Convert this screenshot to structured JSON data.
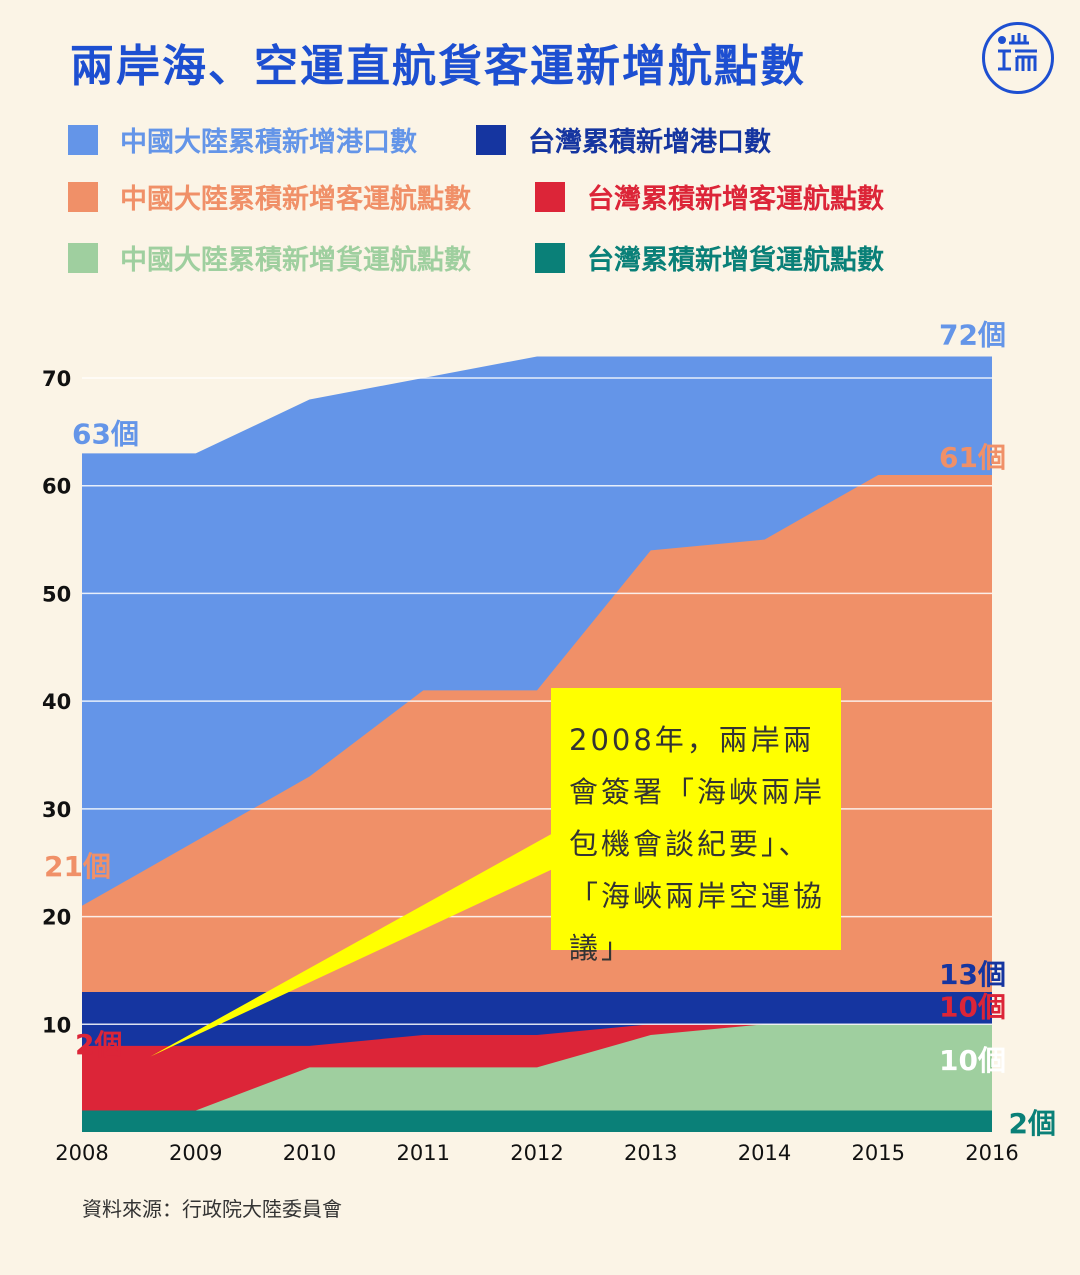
{
  "title": "兩岸海、空運直航貨客運新增航點數",
  "logo": {
    "text": "端",
    "icon": "initium-logo-icon",
    "color": "#1d4fd1"
  },
  "legend": [
    {
      "label": "中國大陸累積新增港口數",
      "color": "#6495e8",
      "text_color": "#6495e8"
    },
    {
      "label": "台灣累積新增港口數",
      "color": "#1535a0",
      "text_color": "#1535a0"
    },
    {
      "label": "中國大陸累積新增客運航點數",
      "color": "#f09068",
      "text_color": "#f09068"
    },
    {
      "label": "台灣累積新增客運航點數",
      "color": "#dc2538",
      "text_color": "#dc2538"
    },
    {
      "label": "中國大陸累積新增貨運航點數",
      "color": "#9fcf9f",
      "text_color": "#9fcf9f"
    },
    {
      "label": "台灣累積新增貨運航點數",
      "color": "#0a8078",
      "text_color": "#0a8078"
    }
  ],
  "chart_data": {
    "type": "area",
    "x": [
      2008,
      2009,
      2010,
      2011,
      2012,
      2013,
      2014,
      2015,
      2016
    ],
    "ylim": [
      0,
      70
    ],
    "yticks": [
      10,
      20,
      30,
      40,
      50,
      60,
      70
    ],
    "grid": true,
    "series": [
      {
        "name": "中國大陸累積新增港口數",
        "color": "#6495e8",
        "values": [
          63,
          63,
          68,
          70,
          72,
          72,
          72,
          72,
          72
        ]
      },
      {
        "name": "中國大陸累積新增客運航點數",
        "color": "#f09068",
        "values": [
          21,
          27,
          33,
          41,
          41,
          54,
          55,
          61,
          61
        ]
      },
      {
        "name": "台灣累積新增港口數",
        "color": "#1535a0",
        "values": [
          13,
          13,
          13,
          13,
          13,
          13,
          13,
          13,
          13
        ]
      },
      {
        "name": "台灣累積新增客運航點數",
        "color": "#dc2538",
        "values": [
          8,
          8,
          8,
          9,
          9,
          10,
          10,
          10,
          10
        ]
      },
      {
        "name": "中國大陸累積新增貨運航點數",
        "color": "#9fcf9f",
        "values": [
          2,
          2,
          6,
          6,
          6,
          9,
          10,
          10,
          10
        ]
      },
      {
        "name": "台灣累積新增貨運航點數",
        "color": "#0a8078",
        "values": [
          2,
          2,
          2,
          2,
          2,
          2,
          2,
          2,
          2
        ]
      }
    ],
    "annotations": [
      {
        "text": "72個",
        "x": 2016,
        "y": 72,
        "color": "#6495e8"
      },
      {
        "text": "63個",
        "x": 2008,
        "y": 63,
        "color": "#6495e8"
      },
      {
        "text": "61個",
        "x": 2016,
        "y": 61,
        "color": "#f09068"
      },
      {
        "text": "21個",
        "x": 2008,
        "y": 21,
        "color": "#f09068"
      },
      {
        "text": "13個",
        "x": 2016,
        "y": 13,
        "color": "#1535a0"
      },
      {
        "text": "10個",
        "x": 2016,
        "y": 10,
        "color": "#dc2538"
      },
      {
        "text": "2個",
        "x": 2008,
        "y": 8,
        "color": "#dc2538"
      },
      {
        "text": "10個",
        "x": 2016,
        "y": 5,
        "color": "#ffffff"
      },
      {
        "text": "2個",
        "x": 2016,
        "y": 1,
        "color": "#0a8078"
      }
    ],
    "callout": {
      "text": "2008年，兩岸兩會簽署「海峽兩岸包機會談紀要」、「海峽兩岸空運協議」",
      "background": "#ffff00",
      "pointer_x": 2008.6,
      "pointer_y": 7
    }
  },
  "source": "資料來源：行政院大陸委員會"
}
